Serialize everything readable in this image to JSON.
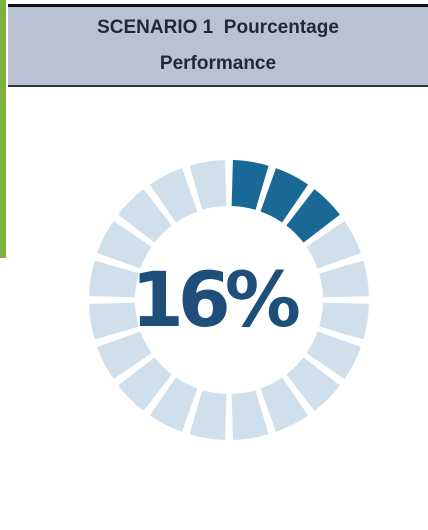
{
  "chart_data": {
    "type": "donut",
    "title": "SCENARIO 1  Pourcentage Performance",
    "value": 16,
    "value_labels": [
      "16%"
    ],
    "color": "#1a6896",
    "track_color": "#cfe0ec"
  }
}
